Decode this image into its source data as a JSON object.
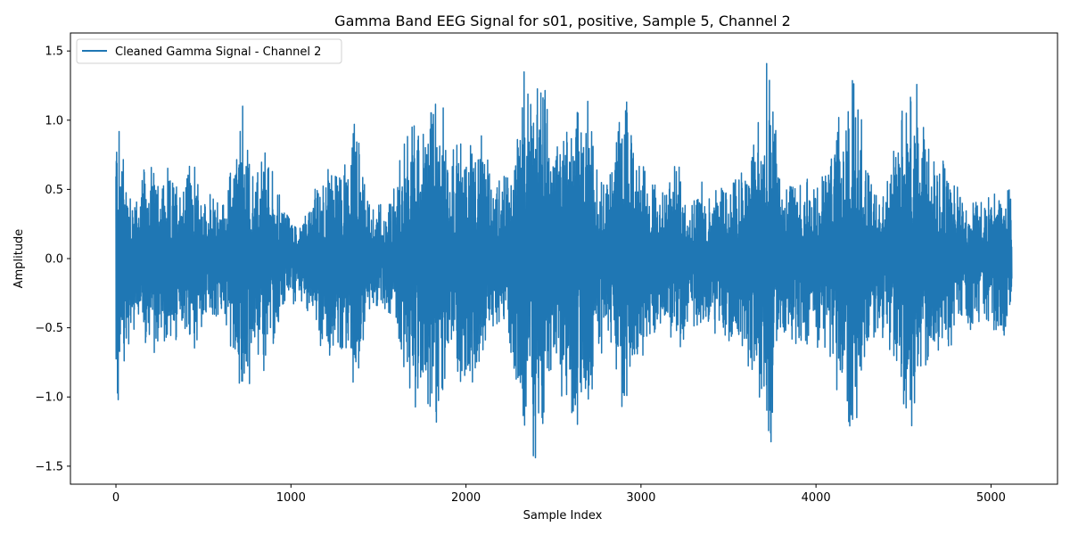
{
  "chart_data": {
    "type": "line",
    "title": "Gamma Band EEG Signal for s01, positive, Sample 5, Channel 2",
    "xlabel": "Sample Index",
    "ylabel": "Amplitude",
    "xlim": [
      -260,
      5380
    ],
    "ylim": [
      -1.63,
      1.63
    ],
    "xticks": [
      0,
      1000,
      2000,
      3000,
      4000,
      5000
    ],
    "xtick_labels": [
      "0",
      "1000",
      "2000",
      "3000",
      "4000",
      "5000"
    ],
    "yticks": [
      -1.5,
      -1.0,
      -0.5,
      0.0,
      0.5,
      1.0,
      1.5
    ],
    "ytick_labels": [
      "−1.5",
      "−1.0",
      "−0.5",
      "0.0",
      "0.5",
      "1.0",
      "1.5"
    ],
    "grid": false,
    "legend_position": "top-left",
    "series": [
      {
        "name": "Cleaned Gamma Signal - Channel 2",
        "color": "#1f77b4",
        "n_samples": 5120,
        "envelope_points": [
          [
            0,
            1.19
          ],
          [
            60,
            0.7
          ],
          [
            120,
            0.45
          ],
          [
            180,
            0.74
          ],
          [
            220,
            0.7
          ],
          [
            320,
            0.58
          ],
          [
            420,
            0.71
          ],
          [
            520,
            0.45
          ],
          [
            620,
            0.43
          ],
          [
            730,
            1.11
          ],
          [
            800,
            0.62
          ],
          [
            850,
            0.83
          ],
          [
            950,
            0.4
          ],
          [
            1050,
            0.28
          ],
          [
            1150,
            0.52
          ],
          [
            1200,
            0.73
          ],
          [
            1300,
            0.63
          ],
          [
            1380,
            1.05
          ],
          [
            1450,
            0.4
          ],
          [
            1550,
            0.4
          ],
          [
            1650,
            0.85
          ],
          [
            1700,
            1.07
          ],
          [
            1750,
            0.93
          ],
          [
            1830,
            1.3
          ],
          [
            1900,
            0.85
          ],
          [
            2050,
            0.96
          ],
          [
            2150,
            0.6
          ],
          [
            2250,
            0.65
          ],
          [
            2330,
            1.33
          ],
          [
            2430,
            1.4
          ],
          [
            2500,
            0.85
          ],
          [
            2600,
            1.22
          ],
          [
            2700,
            1.14
          ],
          [
            2800,
            0.55
          ],
          [
            2900,
            1.14
          ],
          [
            3000,
            0.75
          ],
          [
            3100,
            0.55
          ],
          [
            3200,
            0.7
          ],
          [
            3300,
            0.5
          ],
          [
            3400,
            0.58
          ],
          [
            3550,
            0.63
          ],
          [
            3650,
            0.95
          ],
          [
            3740,
            1.4
          ],
          [
            3800,
            0.55
          ],
          [
            3900,
            0.6
          ],
          [
            4000,
            0.6
          ],
          [
            4100,
            0.8
          ],
          [
            4220,
            1.42
          ],
          [
            4300,
            0.6
          ],
          [
            4400,
            0.55
          ],
          [
            4550,
            1.37
          ],
          [
            4650,
            0.8
          ],
          [
            4800,
            0.55
          ],
          [
            4950,
            0.45
          ],
          [
            5050,
            0.65
          ],
          [
            5120,
            0.58
          ]
        ]
      }
    ]
  }
}
